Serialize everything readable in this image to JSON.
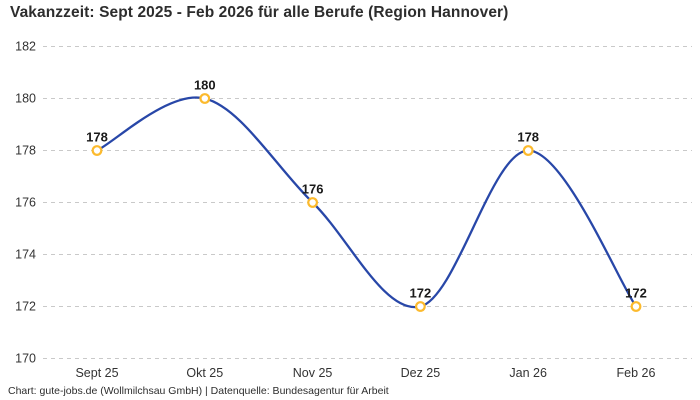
{
  "title": "Vakanzzeit: Sept 2025 - Feb 2026 für alle Berufe (Region Hannover)",
  "footer": "Chart: gute-jobs.de (Wollmilchsau GmbH) | Datenquelle: Bundesagentur für Arbeit",
  "chart_data": {
    "type": "line",
    "title": "Vakanzzeit: Sept 2025 - Feb 2026 für alle Berufe (Region Hannover)",
    "categories": [
      "Sept 25",
      "Okt 25",
      "Nov 25",
      "Dez 25",
      "Jan 26",
      "Feb 26"
    ],
    "values": [
      178,
      180,
      176,
      172,
      178,
      172
    ],
    "xlabel": "",
    "ylabel": "",
    "ylim": [
      170,
      182
    ],
    "yticks": [
      182,
      180,
      178,
      176,
      174,
      172,
      170
    ],
    "grid": "horizontal dashed",
    "legend": "none",
    "smooth": true,
    "data_labels": true,
    "colors": {
      "line": "#2847a8",
      "marker_ring": "#fcba2d",
      "marker_fill": "#ffffff",
      "gridline": "#c9c9c9",
      "tick_label": "#333333",
      "data_label": "#1a1a1a",
      "title": "#2d2d2d",
      "background": "#ffffff"
    }
  }
}
